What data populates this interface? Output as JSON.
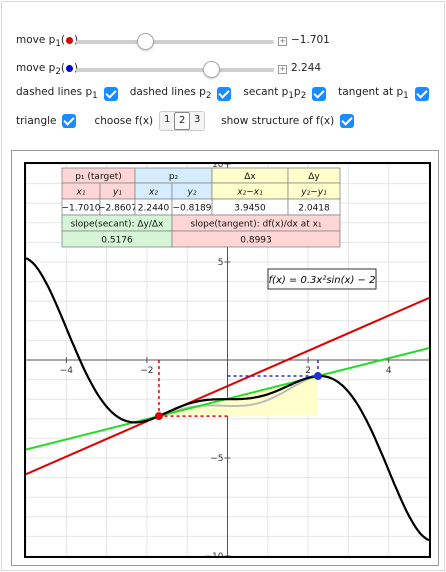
{
  "controls": {
    "move_p1_label": "move p",
    "move_p1_sub": "1",
    "move_p1_value": "−1.701",
    "move_p1_fraction": 0.35,
    "move_p2_label": "move p",
    "move_p2_sub": "2",
    "move_p2_value": "2.244",
    "move_p2_fraction": 0.68,
    "dashed_p1_label": "dashed lines p",
    "dashed_p1_sub": "1",
    "dashed_p2_label": "dashed lines p",
    "dashed_p2_sub": "2",
    "secant_label": "secant p",
    "secant_sub1": "1",
    "secant_p": "p",
    "secant_sub2": "2",
    "tangent_label": "tangent at p",
    "tangent_sub": "1",
    "triangle_label": "triangle",
    "choose_label": "choose f(x)",
    "choose_options": [
      "1",
      "2",
      "3"
    ],
    "choose_selected": "2",
    "structure_label": "show structure of f(x)",
    "checked": true,
    "p1_color": "#e00000",
    "p2_color": "#0000d0",
    "checkbox_color": "#1a8cff"
  },
  "table": {
    "p1_header": "p₁ (target)",
    "p2_header": "p₂",
    "dx_header": "Δx",
    "dy_header": "Δy",
    "x1": "x₁",
    "y1": "y₁",
    "x2": "x₂",
    "y2": "y₂",
    "x2mx1": "x₂−x₁",
    "y2my1": "y₂−y₁",
    "x1_val": "−1.7010",
    "y1_val": "−2.8607",
    "x2_val": "2.2440",
    "y2_val": "−0.8189",
    "dx_val": "3.9450",
    "dy_val": "2.0418",
    "secant_slope_label": "slope(secant): Δy/Δx",
    "tangent_slope_label": "slope(tangent): df(x)/dx at x₁",
    "secant_slope_val": "0.5176",
    "tangent_slope_val": "0.8993"
  },
  "plot": {
    "formula": "f(x) = 0.3x²sin(x) − 2",
    "x_ticks": [
      "−4",
      "−2",
      "2",
      "4"
    ],
    "y_ticks": [
      "10",
      "5",
      "−5",
      "−10"
    ]
  },
  "chart_data": {
    "type": "line",
    "function": "0.3*x^2*sin(x) - 2",
    "xlim": [
      -5,
      5
    ],
    "ylim": [
      -10,
      10
    ],
    "p1": {
      "x": -1.701,
      "y": -2.8607
    },
    "p2": {
      "x": 2.244,
      "y": -0.8189
    },
    "secant_slope": 0.5176,
    "tangent_slope": 0.8993,
    "series_colors": {
      "curve": "#000000",
      "tangent": "#e00000",
      "secant": "#22dd22",
      "triangle_fill": "#ffffcc"
    }
  }
}
